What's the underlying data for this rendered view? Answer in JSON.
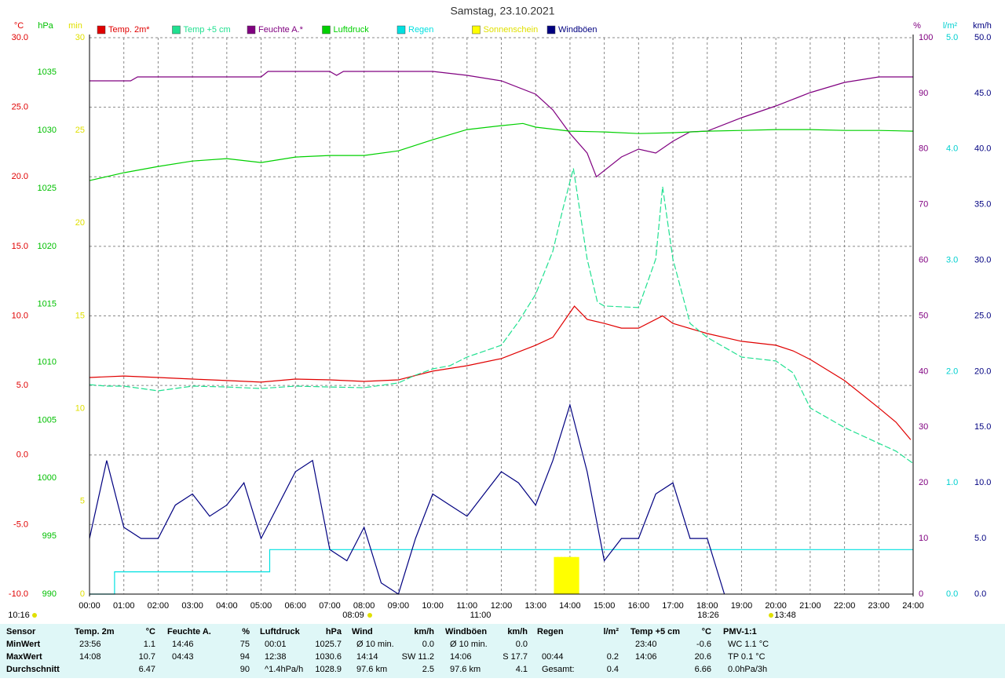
{
  "chart_data": {
    "type": "line",
    "title": "Samstag, 23.10.2021",
    "grid": true,
    "xlim": [
      0,
      24
    ],
    "xticks": [
      {
        "value": 0,
        "label": "00:00"
      },
      {
        "value": 1,
        "label": "01:00"
      },
      {
        "value": 2,
        "label": "02:00"
      },
      {
        "value": 3,
        "label": "03:00"
      },
      {
        "value": 4,
        "label": "04:00"
      },
      {
        "value": 5,
        "label": "05:00"
      },
      {
        "value": 6,
        "label": "06:00"
      },
      {
        "value": 7,
        "label": "07:00"
      },
      {
        "value": 8,
        "label": "08:00"
      },
      {
        "value": 9,
        "label": "09:00"
      },
      {
        "value": 10,
        "label": "10:00"
      },
      {
        "value": 11,
        "label": "11:00"
      },
      {
        "value": 12,
        "label": "12:00"
      },
      {
        "value": 13,
        "label": "13:00"
      },
      {
        "value": 14,
        "label": "14:00"
      },
      {
        "value": 15,
        "label": "15:00"
      },
      {
        "value": 16,
        "label": "16:00"
      },
      {
        "value": 17,
        "label": "17:00"
      },
      {
        "value": 18,
        "label": "18:00"
      },
      {
        "value": 19,
        "label": "19:00"
      },
      {
        "value": 20,
        "label": "20:00"
      },
      {
        "value": 21,
        "label": "21:00"
      },
      {
        "value": 22,
        "label": "22:00"
      },
      {
        "value": 23,
        "label": "23:00"
      },
      {
        "value": 24,
        "label": "24:00"
      }
    ],
    "axes": [
      {
        "unit": "°C",
        "color": "#e00000",
        "side": "left",
        "ylim": [
          -10,
          30
        ],
        "yticks": [
          {
            "value": -10,
            "label": "-10.0"
          },
          {
            "value": -5,
            "label": "-5.0"
          },
          {
            "value": 0,
            "label": "0.0"
          },
          {
            "value": 5,
            "label": "5.0"
          },
          {
            "value": 10,
            "label": "10.0"
          },
          {
            "value": 15,
            "label": "15.0"
          },
          {
            "value": 20,
            "label": "20.0"
          },
          {
            "value": 25,
            "label": "25.0"
          },
          {
            "value": 30,
            "label": "30.0"
          }
        ]
      },
      {
        "unit": "hPa",
        "color": "#00c000",
        "side": "left",
        "ylim": [
          990,
          1038
        ],
        "yticks": [
          990,
          995,
          1000,
          1005,
          1010,
          1015,
          1020,
          1025,
          1030,
          1035
        ]
      },
      {
        "unit": "min",
        "color": "#e0e000",
        "side": "left",
        "ylim": [
          0,
          30
        ],
        "yticks": [
          0,
          5,
          10,
          15,
          20,
          25,
          30
        ]
      },
      {
        "unit": "%",
        "color": "#800080",
        "side": "right",
        "ylim": [
          0,
          100
        ],
        "yticks": [
          0,
          10,
          20,
          30,
          40,
          50,
          60,
          70,
          80,
          90,
          100
        ]
      },
      {
        "unit": "l/m²",
        "color": "#00d0d0",
        "side": "right",
        "ylim": [
          0,
          5
        ],
        "yticks": [
          {
            "value": 0,
            "label": "0.0"
          },
          {
            "value": 1,
            "label": "1.0"
          },
          {
            "value": 2,
            "label": "2.0"
          },
          {
            "value": 3,
            "label": "3.0"
          },
          {
            "value": 4,
            "label": "4.0"
          },
          {
            "value": 5,
            "label": "5.0"
          }
        ]
      },
      {
        "unit": "km/h",
        "color": "#000080",
        "side": "right",
        "ylim": [
          0,
          50
        ],
        "yticks": [
          {
            "value": 0,
            "label": "0.0"
          },
          {
            "value": 5,
            "label": "5.0"
          },
          {
            "value": 10,
            "label": "10.0"
          },
          {
            "value": 15,
            "label": "15.0"
          },
          {
            "value": 20,
            "label": "20.0"
          },
          {
            "value": 25,
            "label": "25.0"
          },
          {
            "value": 30,
            "label": "30.0"
          },
          {
            "value": 35,
            "label": "35.0"
          },
          {
            "value": 40,
            "label": "40.0"
          },
          {
            "value": 45,
            "label": "45.0"
          },
          {
            "value": 50,
            "label": "50.0"
          }
        ]
      }
    ],
    "series": [
      {
        "name": "Temp. 2m*",
        "color": "#e00000",
        "axis": 0,
        "style": "solid",
        "x": [
          0,
          1,
          2,
          3,
          4,
          5,
          6,
          7,
          8,
          9,
          10,
          11,
          12,
          13,
          13.5,
          14.13,
          14.5,
          15,
          15.5,
          16,
          16.7,
          17,
          18,
          19,
          20,
          20.5,
          21,
          22,
          23,
          23.5,
          23.93
        ],
        "values": [
          5.57,
          5.68,
          5.57,
          5.46,
          5.35,
          5.24,
          5.46,
          5.4,
          5.29,
          5.4,
          6.03,
          6.42,
          6.93,
          7.89,
          8.46,
          10.7,
          9.75,
          9.46,
          9.12,
          9.12,
          10.0,
          9.46,
          8.73,
          8.17,
          7.89,
          7.49,
          6.87,
          5.35,
          3.38,
          2.36,
          1.1
        ]
      },
      {
        "name": "Temp +5 cm",
        "color": "#20e090",
        "axis": 0,
        "style": "dashed",
        "x": [
          0,
          0.5,
          1,
          2,
          3,
          4,
          5,
          6,
          7,
          8,
          9,
          9.5,
          10,
          10.5,
          11,
          12,
          12.5,
          13,
          13.5,
          13.8,
          14.1,
          14.5,
          14.8,
          15,
          16,
          16.5,
          16.7,
          17,
          17.5,
          18,
          19,
          20,
          20.5,
          21,
          22,
          23,
          23.5,
          24
        ],
        "values": [
          5.06,
          4.95,
          4.95,
          4.61,
          4.95,
          4.89,
          4.78,
          4.95,
          4.89,
          4.84,
          5.18,
          5.74,
          6.19,
          6.42,
          7.04,
          7.89,
          9.58,
          11.55,
          14.65,
          17.76,
          20.6,
          14.09,
          10.99,
          10.71,
          10.6,
          14.09,
          19.28,
          14.09,
          9.46,
          8.45,
          7.04,
          6.76,
          5.91,
          3.38,
          1.97,
          0.84,
          0.28,
          -0.6
        ]
      },
      {
        "name": "Feuchte A.*",
        "color": "#800080",
        "axis": 3,
        "style": "solid",
        "x": [
          0,
          1.2,
          1.4,
          5,
          5.2,
          7,
          7.2,
          7.4,
          8,
          10,
          11,
          12,
          13,
          13.5,
          14,
          14.5,
          14.77,
          15.5,
          16,
          16.5,
          17,
          17.5,
          18,
          19,
          20,
          21,
          22,
          23,
          24
        ],
        "values": [
          92.24,
          92.24,
          92.95,
          92.95,
          93.94,
          93.94,
          93.23,
          93.94,
          93.94,
          93.94,
          93.23,
          92.24,
          89.84,
          87.02,
          82.79,
          79.27,
          75,
          78.56,
          79.97,
          79.27,
          81.38,
          83.07,
          83.21,
          85.61,
          87.73,
          90.13,
          91.96,
          92.95,
          92.95
        ]
      },
      {
        "name": "Luftdruck",
        "color": "#00d000",
        "axis": 1,
        "style": "solid",
        "x": [
          0,
          1,
          2,
          3,
          4,
          5,
          6,
          7,
          8,
          9,
          10,
          11,
          12,
          12.63,
          13,
          14,
          15,
          16,
          17,
          18,
          19,
          20,
          21,
          22,
          23,
          24
        ],
        "values": [
          1025.67,
          1026.35,
          1026.89,
          1027.36,
          1027.57,
          1027.23,
          1027.7,
          1027.84,
          1027.84,
          1028.24,
          1029.19,
          1030.07,
          1030.41,
          1030.6,
          1030.28,
          1029.94,
          1029.87,
          1029.73,
          1029.8,
          1029.94,
          1030.0,
          1030.07,
          1030.07,
          1030.0,
          1030.0,
          1029.94
        ]
      },
      {
        "name": "Regen",
        "color": "#00e0e0",
        "axis": 4,
        "style": "solid",
        "x": [
          0,
          0.73,
          0.73,
          5.25,
          5.25,
          24
        ],
        "values": [
          0,
          0,
          0.2,
          0.2,
          0.4,
          0.4
        ]
      },
      {
        "name": "Sonnenschein",
        "color": "#ffff00",
        "axis": 2,
        "style": "bar",
        "x": [
          13.6,
          13.7,
          13.8,
          13.9,
          14.0,
          14.1,
          14.2
        ],
        "values": [
          2,
          2,
          2,
          2,
          2,
          2,
          2
        ]
      },
      {
        "name": "Windböen",
        "color": "#000080",
        "axis": 5,
        "style": "solid",
        "x": [
          0,
          0.5,
          1,
          1.5,
          2,
          2.5,
          3,
          3.5,
          4,
          4.5,
          5,
          5.5,
          6,
          6.5,
          7,
          7.5,
          8,
          8.5,
          9,
          9.5,
          10,
          10.5,
          11,
          11.5,
          12,
          12.5,
          13,
          13.5,
          14,
          14.5,
          15,
          15.5,
          16,
          16.5,
          17,
          17.5,
          18,
          18.5
        ],
        "values": [
          5,
          12,
          6,
          5,
          5,
          8,
          9,
          7,
          8,
          10,
          5,
          8,
          11,
          12,
          4,
          3,
          6,
          1,
          0,
          5,
          9,
          8,
          7,
          9,
          11,
          10,
          8,
          12,
          17,
          11,
          3,
          5,
          5,
          9,
          10,
          5,
          5,
          0
        ]
      }
    ],
    "annotations": [
      "08:09",
      "11:00",
      "18:26",
      "13:48",
      "10:16"
    ]
  },
  "table": {
    "header": [
      {
        "name": "Sensor"
      },
      {
        "name": "Temp. 2m",
        "unit": "°C"
      },
      {
        "name": "Feuchte A.",
        "unit": "%"
      },
      {
        "name": "Luftdruck",
        "unit": "hPa"
      },
      {
        "name": "Wind",
        "unit": "km/h"
      },
      {
        "name": "Windböen",
        "unit": "km/h"
      },
      {
        "name": "Regen",
        "unit": "l/m²"
      },
      {
        "name": "Temp +5 cm",
        "unit": "°C"
      },
      {
        "name": "PMV-1:1"
      }
    ],
    "rows": [
      [
        {
          "l": "MinWert"
        },
        {
          "l": "23:56",
          "r": "1.1"
        },
        {
          "l": "14:46",
          "r": "75"
        },
        {
          "l": "00:01",
          "r": "1025.7"
        },
        {
          "l": "Ø 10 min.",
          "r": "0.0"
        },
        {
          "l": "Ø 10 min.",
          "r": "0.0"
        },
        {},
        {
          "l": "23:40",
          "r": "-0.6"
        },
        {
          "l": "WC 1.1 °C"
        }
      ],
      [
        {
          "l": "MaxWert"
        },
        {
          "l": "14:08",
          "r": "10.7"
        },
        {
          "l": "04:43",
          "r": "94"
        },
        {
          "l": "12:38",
          "r": "1030.6"
        },
        {
          "l": "14:14",
          "r": "SW 11.2"
        },
        {
          "l": "14:06",
          "r": "S 17.7"
        },
        {
          "l": "00:44",
          "r": "0.2"
        },
        {
          "l": "14:06",
          "r": "20.6"
        },
        {
          "l": "TP 0.1 °C"
        }
      ],
      [
        {
          "l": "Durchschnitt"
        },
        {
          "r": "6.47"
        },
        {
          "r": "90"
        },
        {
          "l": "^1.4hPa/h",
          "r": "1028.9"
        },
        {
          "l": "97.6 km",
          "r": "2.5"
        },
        {
          "l": "97.6 km",
          "r": "4.1"
        },
        {
          "l": "Gesamt:",
          "r": "0.4"
        },
        {
          "r": "6.66"
        },
        {
          "l": "0.0hPa/3h"
        }
      ]
    ]
  }
}
